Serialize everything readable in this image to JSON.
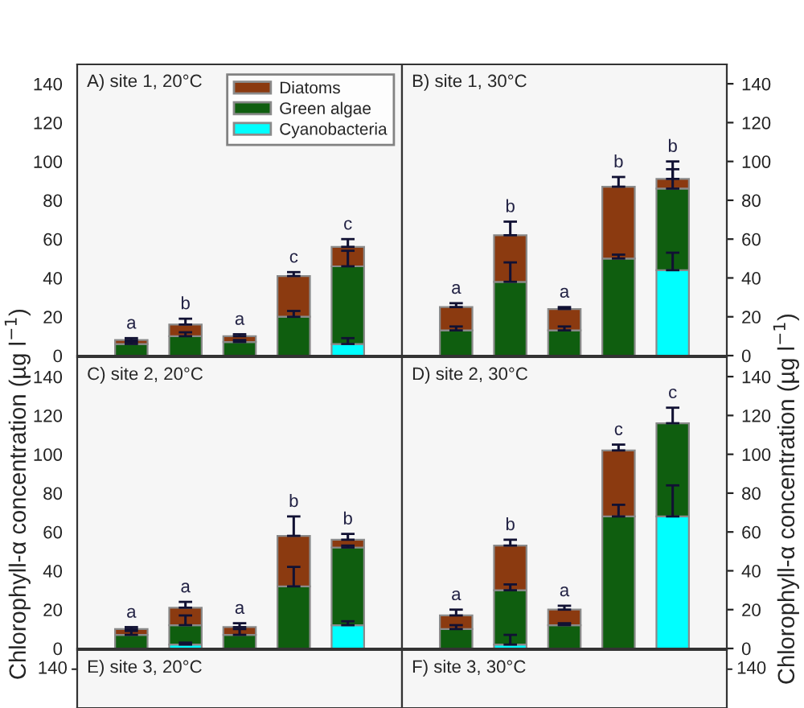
{
  "chart_data": [
    {
      "type": "bar",
      "title": "A) site 1, 20°C",
      "stacked": true,
      "categories": [
        null,
        null,
        null,
        null,
        null
      ],
      "ylim": [
        0,
        150
      ],
      "yticks": [
        0,
        20,
        40,
        60,
        80,
        100,
        120,
        140
      ],
      "tick_labels": "y",
      "legend": "top right",
      "grid": false,
      "series": [
        {
          "name": "Cyanobacteria",
          "color": "#00ffff",
          "values": [
            null,
            null,
            null,
            null,
            6
          ],
          "errors": [
            null,
            null,
            null,
            null,
            [
              6,
              9
            ]
          ]
        },
        {
          "name": "Green algae",
          "color": "#0f5e0f",
          "values": [
            6,
            10,
            7,
            20,
            40
          ],
          "errors": [
            [
              6,
              7
            ],
            [
              10,
              12
            ],
            [
              7,
              8
            ],
            [
              20,
              23
            ],
            [
              46,
              54
            ]
          ]
        },
        {
          "name": "Diatoms",
          "color": "#8b3a10",
          "values": [
            2,
            6,
            3,
            21,
            10
          ],
          "errors": [
            [
              8,
              9
            ],
            [
              16,
              19
            ],
            [
              10,
              11
            ],
            [
              41,
              43
            ],
            [
              56,
              60
            ]
          ]
        }
      ],
      "annotations": [
        "a",
        "b",
        "a",
        "c",
        "c"
      ]
    },
    {
      "type": "bar",
      "title": "B) site 1, 30°C",
      "stacked": true,
      "categories": [
        null,
        null,
        null,
        null,
        null
      ],
      "ylim": [
        0,
        150
      ],
      "yticks": [
        0,
        20,
        40,
        60,
        80,
        100,
        120,
        140
      ],
      "tick_labels": "y",
      "grid": false,
      "series": [
        {
          "color": "#00ffff",
          "values": [
            null,
            null,
            null,
            null,
            44
          ],
          "errors": [
            null,
            null,
            null,
            null,
            [
              44,
              53
            ]
          ]
        },
        {
          "color": "#0f5e0f",
          "values": [
            13,
            38,
            13,
            50,
            42
          ],
          "errors": [
            [
              13,
              15
            ],
            [
              38,
              48
            ],
            [
              13,
              15
            ],
            [
              50,
              52
            ],
            [
              86,
              96
            ]
          ]
        },
        {
          "color": "#8b3a10",
          "values": [
            12,
            24,
            11,
            37,
            5
          ],
          "errors": [
            [
              25,
              27
            ],
            [
              62,
              69
            ],
            [
              24,
              25
            ],
            [
              87,
              92
            ],
            [
              91,
              100
            ]
          ]
        }
      ],
      "annotations": [
        "a",
        "b",
        "a",
        "b",
        "b"
      ]
    },
    {
      "type": "bar",
      "title": "C) site 2, 20°C",
      "ylabel": "Chlorophyll-α concentration (µg l$^{−1}$)",
      "stacked": true,
      "categories": [
        null,
        null,
        null,
        null,
        null
      ],
      "ylim": [
        0,
        150
      ],
      "yticks": [
        0,
        20,
        40,
        60,
        80,
        100,
        120,
        140
      ],
      "tick_labels": "y",
      "grid": false,
      "series": [
        {
          "color": "#00ffff",
          "values": [
            null,
            2,
            null,
            null,
            12
          ],
          "errors": [
            null,
            [
              2,
              3
            ],
            null,
            null,
            [
              12,
              14
            ]
          ]
        },
        {
          "color": "#0f5e0f",
          "values": [
            7,
            10,
            7,
            32,
            40
          ],
          "errors": [
            [
              7,
              9
            ],
            [
              12,
              17
            ],
            [
              7,
              10
            ],
            [
              32,
              42
            ],
            [
              52,
              53
            ]
          ]
        },
        {
          "color": "#8b3a10",
          "values": [
            3,
            9,
            4,
            26,
            4
          ],
          "errors": [
            [
              10,
              11
            ],
            [
              21,
              24
            ],
            [
              11,
              13
            ],
            [
              58,
              68
            ],
            [
              56,
              59
            ]
          ]
        }
      ],
      "annotations": [
        "a",
        "a",
        "a",
        "b",
        "b"
      ]
    },
    {
      "type": "bar",
      "title": "D) site 2, 30°C",
      "y2label": "Chlorophyll-α concentration (µg l$^{−1}$)",
      "stacked": true,
      "categories": [
        null,
        null,
        null,
        null,
        null
      ],
      "ylim": [
        0,
        150
      ],
      "yticks": [
        0,
        20,
        40,
        60,
        80,
        100,
        120,
        140
      ],
      "tick_labels": "y",
      "grid": false,
      "series": [
        {
          "color": "#00ffff",
          "values": [
            null,
            2,
            null,
            null,
            68
          ],
          "errors": [
            null,
            [
              2,
              7
            ],
            null,
            null,
            [
              68,
              84
            ]
          ]
        },
        {
          "color": "#0f5e0f",
          "values": [
            10,
            28,
            12,
            68,
            48
          ],
          "errors": [
            [
              10,
              12
            ],
            [
              30,
              33
            ],
            [
              12,
              13
            ],
            [
              68,
              74
            ],
            [
              116,
              124
            ]
          ]
        },
        {
          "color": "#8b3a10",
          "values": [
            7,
            23,
            8,
            34,
            null
          ],
          "errors": [
            [
              17,
              20
            ],
            [
              53,
              56
            ],
            [
              20,
              22
            ],
            [
              102,
              105
            ],
            null
          ]
        }
      ],
      "annotations": [
        "a",
        "b",
        "a",
        "c",
        "c"
      ]
    },
    {
      "type": "other",
      "title": "E) site 3, 20°C",
      "annotations": [
        "140"
      ]
    },
    {
      "type": "other",
      "title": "F) site 3, 30°C",
      "annotations": [
        "140"
      ]
    }
  ]
}
